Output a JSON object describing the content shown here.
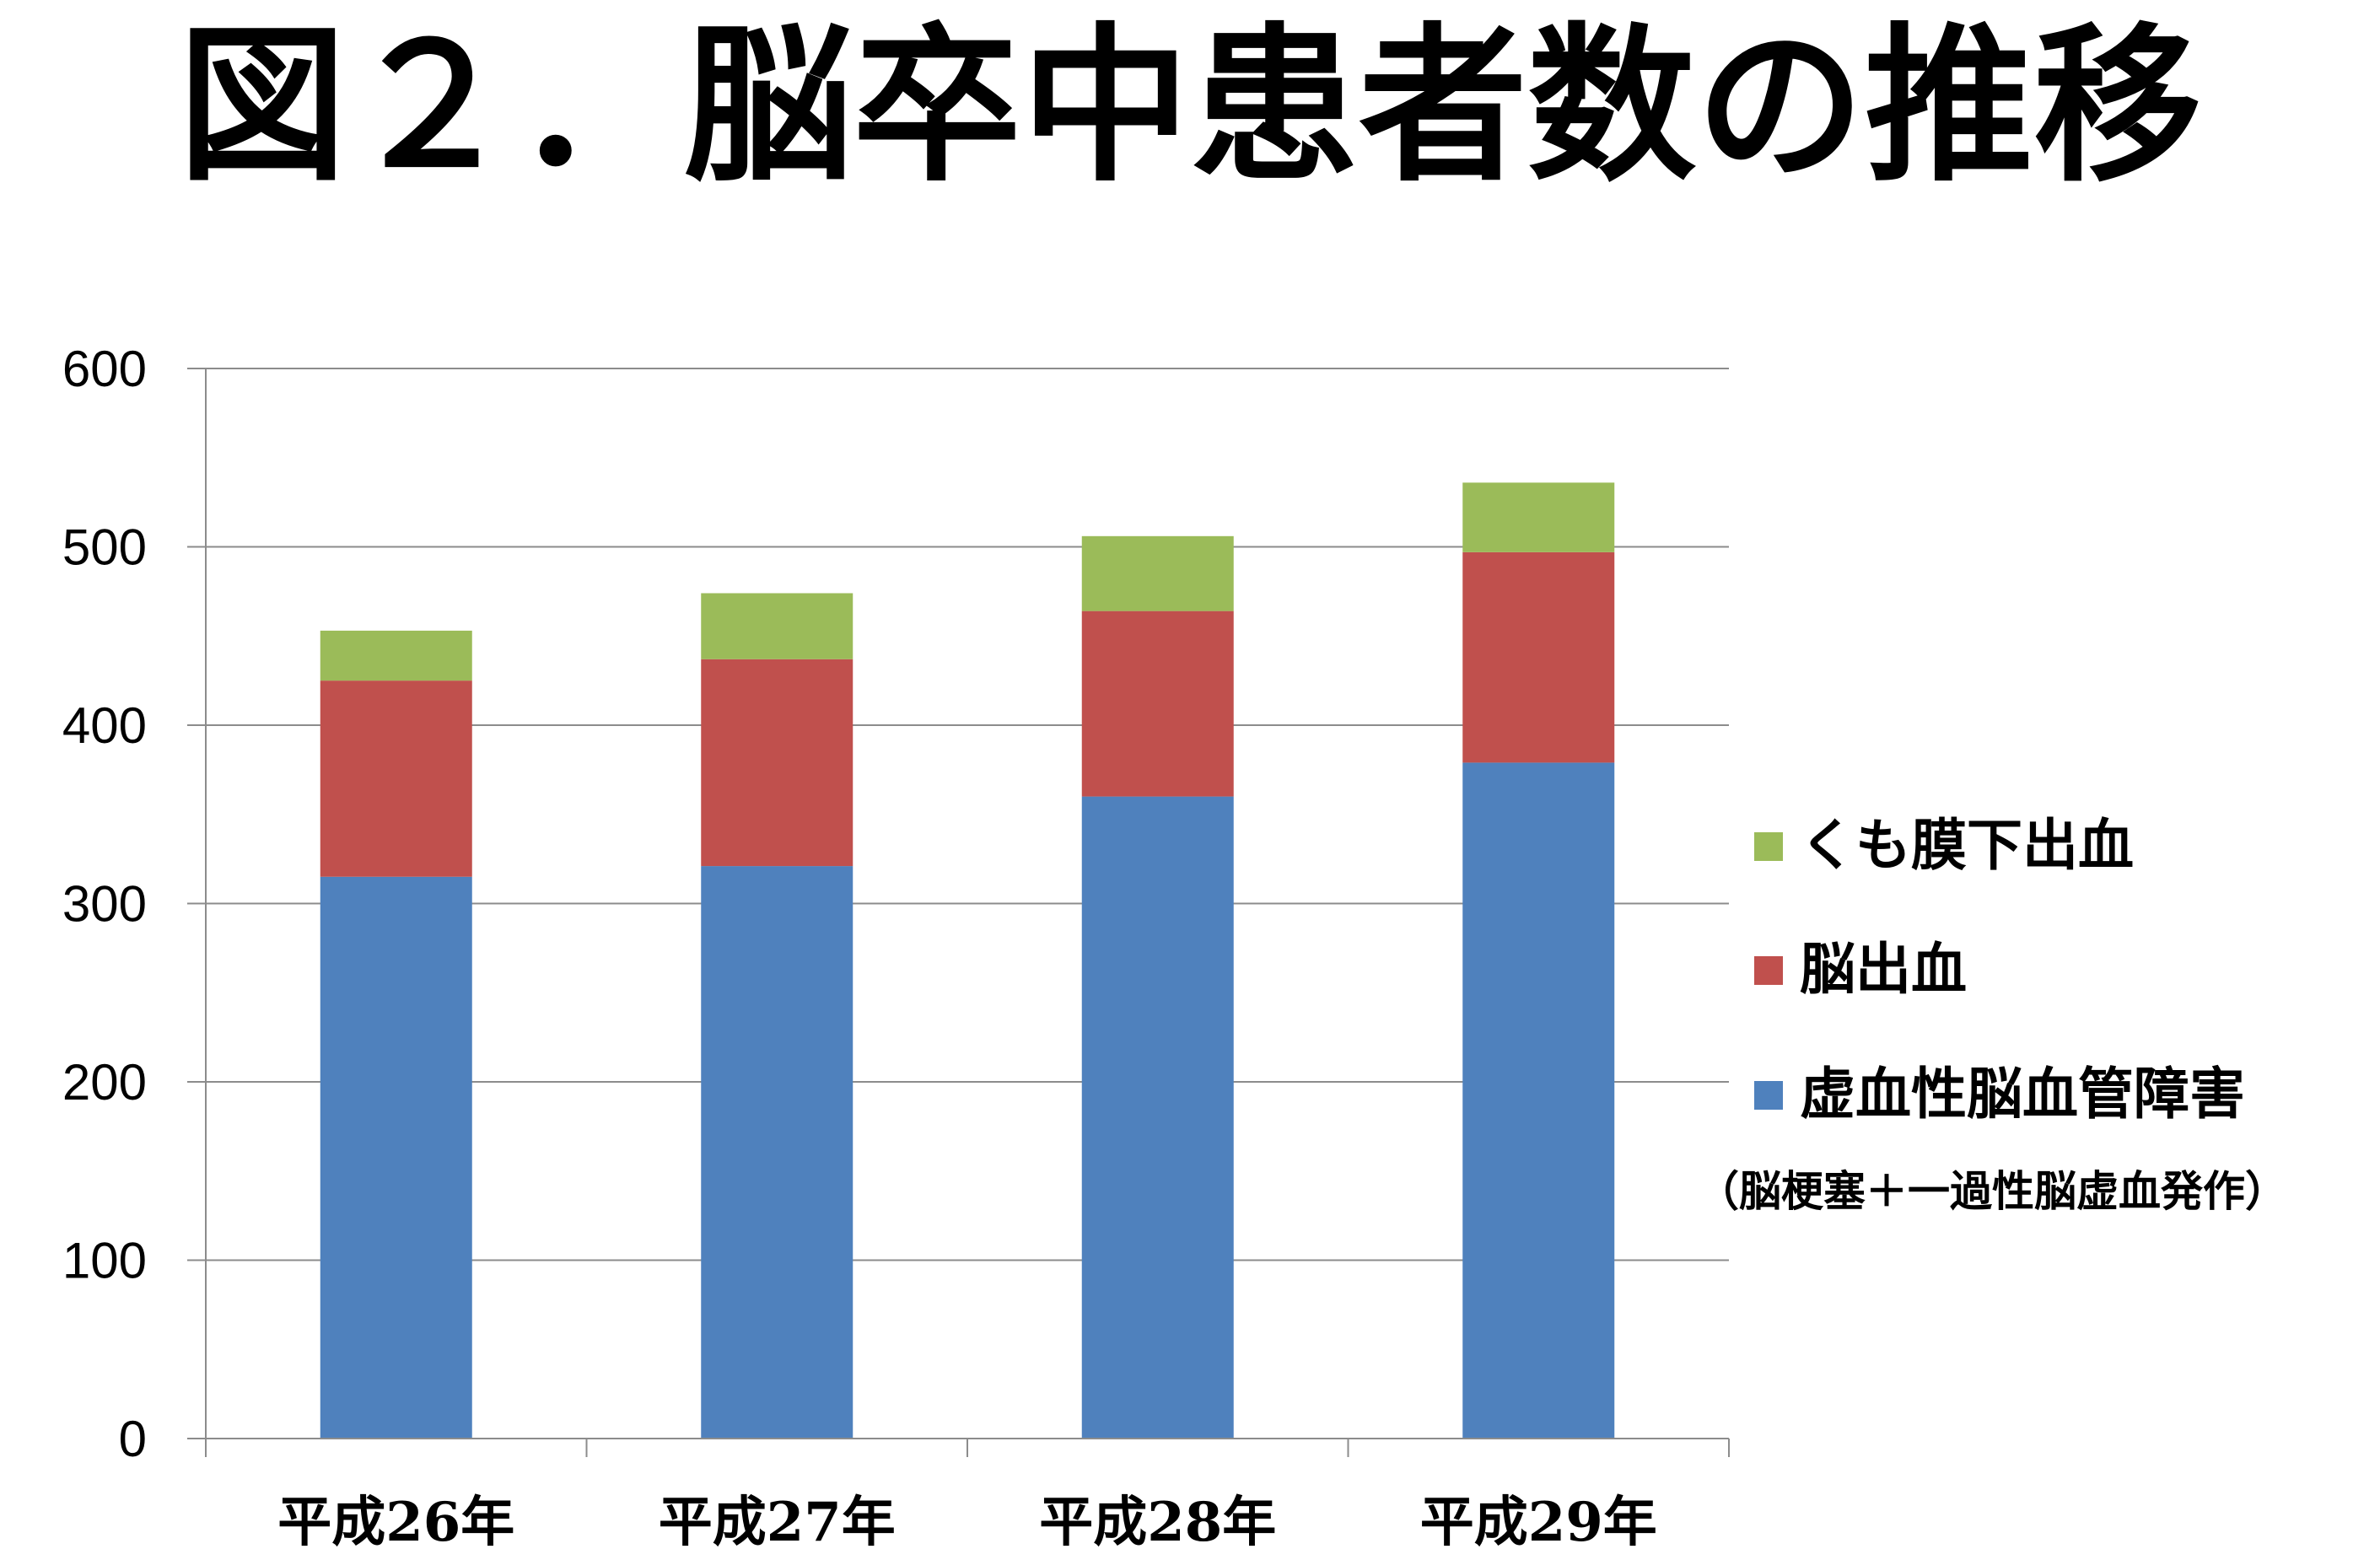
{
  "chart_data": {
    "type": "bar",
    "stacked": true,
    "title": "図２．脳卒中患者数の推移",
    "categories": [
      "平成26年",
      "平成27年",
      "平成28年",
      "平成29年"
    ],
    "ylim": [
      0,
      600
    ],
    "yticks": [
      0,
      100,
      200,
      300,
      400,
      500,
      600
    ],
    "grid": true,
    "legend_position": "right",
    "series": [
      {
        "name": "虚血性脳血管障害",
        "note": "（脳梗塞＋一過性脳虚血発作）",
        "color": "#4F81BD",
        "values": [
          315,
          321,
          360,
          379
        ]
      },
      {
        "name": "脳出血",
        "color": "#C0504D",
        "values": [
          110,
          116,
          104,
          118
        ]
      },
      {
        "name": "くも膜下出血",
        "color": "#9BBB59",
        "values": [
          28,
          37,
          42,
          39
        ]
      }
    ]
  }
}
